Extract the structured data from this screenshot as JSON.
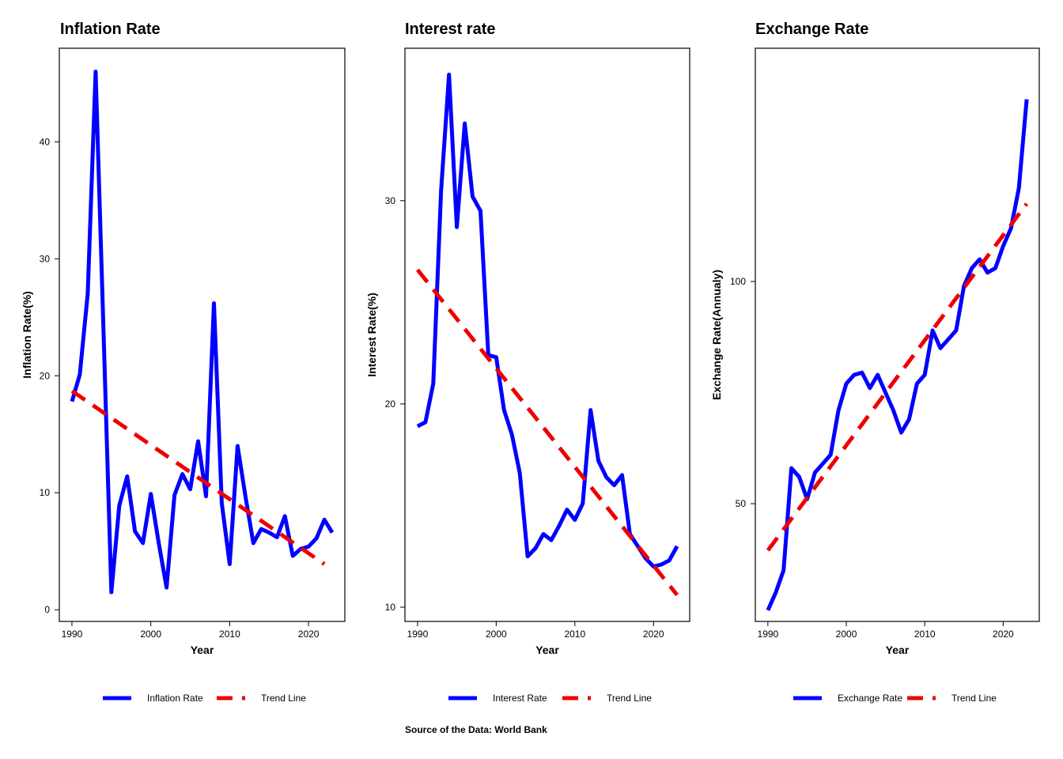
{
  "caption": "Source of the Data: World Bank",
  "colors": {
    "series": "#0000ff",
    "trend": "#ee0000"
  },
  "chart_data": [
    {
      "type": "line",
      "title": "Inflation Rate",
      "xlabel": "Year",
      "ylabel": "Inflation Rate(%)",
      "xlim": [
        1988.4,
        2024.6
      ],
      "ylim": [
        -1.0,
        48.0
      ],
      "xticks": [
        "1990",
        "2000",
        "2010",
        "2020"
      ],
      "yticks": [
        "0",
        "10",
        "20",
        "30",
        "40"
      ],
      "x": [
        1990,
        1991,
        1992,
        1993,
        1994,
        1995,
        1996,
        1997,
        1998,
        1999,
        2000,
        2001,
        2002,
        2003,
        2004,
        2005,
        2006,
        2007,
        2008,
        2009,
        2010,
        2011,
        2012,
        2013,
        2014,
        2015,
        2016,
        2017,
        2018,
        2019,
        2020,
        2021,
        2022,
        2023
      ],
      "series": [
        {
          "name": "Inflation Rate",
          "style": "solid",
          "values": [
            17.8,
            20.1,
            27.0,
            46.0,
            24.0,
            1.5,
            8.9,
            11.4,
            6.7,
            5.7,
            9.9,
            5.7,
            1.9,
            9.8,
            11.6,
            10.3,
            14.4,
            9.7,
            26.2,
            9.1,
            3.9,
            14.0,
            9.7,
            5.7,
            6.9,
            6.6,
            6.2,
            8.0,
            4.6,
            5.2,
            5.4,
            6.1,
            7.7,
            6.6
          ]
        },
        {
          "name": "Trend Line",
          "style": "dashed",
          "x": [
            1990,
            2022
          ],
          "values": [
            18.7,
            3.9
          ]
        }
      ],
      "legend": [
        "Inflation Rate",
        "Trend Line"
      ],
      "legend_position": "bottom"
    },
    {
      "type": "line",
      "title": "Interest rate",
      "xlabel": "Year",
      "ylabel": "Interest Rate(%)",
      "xlim": [
        1988.4,
        2024.6
      ],
      "ylim": [
        9.3,
        37.5
      ],
      "xticks": [
        "1990",
        "2000",
        "2010",
        "2020"
      ],
      "yticks": [
        "10",
        "20",
        "30"
      ],
      "x": [
        1990,
        1991,
        1992,
        1993,
        1994,
        1995,
        1996,
        1997,
        1998,
        1999,
        2000,
        2001,
        2002,
        2003,
        2004,
        2005,
        2006,
        2007,
        2008,
        2009,
        2010,
        2011,
        2012,
        2013,
        2014,
        2015,
        2016,
        2017,
        2018,
        2019,
        2020,
        2021,
        2022,
        2023
      ],
      "series": [
        {
          "name": "Interest Rate",
          "style": "solid",
          "values": [
            18.9,
            19.1,
            21.0,
            30.5,
            36.2,
            28.7,
            33.8,
            30.2,
            29.5,
            22.4,
            22.3,
            19.7,
            18.5,
            16.6,
            12.5,
            12.9,
            13.6,
            13.3,
            14.0,
            14.8,
            14.3,
            15.1,
            19.7,
            17.2,
            16.4,
            16.0,
            16.5,
            13.6,
            13.0,
            12.4,
            12.0,
            12.1,
            12.3,
            13.0
          ]
        },
        {
          "name": "Trend Line",
          "style": "dashed",
          "x": [
            1990,
            2023
          ],
          "values": [
            26.6,
            10.6
          ]
        }
      ],
      "legend": [
        "Interest Rate",
        "Trend Line"
      ],
      "legend_position": "bottom"
    },
    {
      "type": "line",
      "title": "Exchange Rate",
      "xlabel": "Year",
      "ylabel": "Exchange Rate(Annualy)",
      "xlim": [
        1988.4,
        2024.6
      ],
      "ylim": [
        23.5,
        152.5
      ],
      "xticks": [
        "1990",
        "2000",
        "2010",
        "2020"
      ],
      "yticks": [
        "50",
        "100"
      ],
      "x": [
        1990,
        1991,
        1992,
        1993,
        1994,
        1995,
        1996,
        1997,
        1998,
        1999,
        2000,
        2001,
        2002,
        2003,
        2004,
        2005,
        2006,
        2007,
        2008,
        2009,
        2010,
        2011,
        2012,
        2013,
        2014,
        2015,
        2016,
        2017,
        2018,
        2019,
        2020,
        2021,
        2022,
        2023
      ],
      "series": [
        {
          "name": "Exchange Rate",
          "style": "solid",
          "values": [
            26,
            30,
            35,
            58,
            56,
            51,
            57,
            59,
            61,
            71,
            77,
            79,
            79.5,
            76,
            79,
            75,
            71,
            66,
            69,
            77,
            79,
            89,
            85,
            87,
            89,
            99,
            103,
            105,
            102,
            103,
            108,
            112,
            121,
            141
          ]
        },
        {
          "name": "Trend Line",
          "style": "dashed",
          "x": [
            1990,
            2023
          ],
          "values": [
            39.5,
            117.5
          ]
        }
      ],
      "legend": [
        "Exchange Rate",
        "Trend Line"
      ],
      "legend_position": "bottom"
    }
  ]
}
